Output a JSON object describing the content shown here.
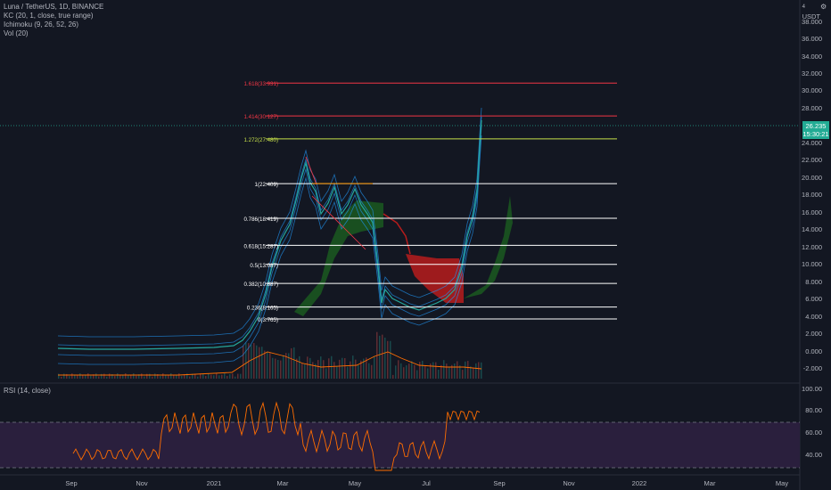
{
  "symbol_line": "Luna / TetherUS, 1D, BINANCE",
  "indicators": [
    "KC (20, 1, close, true range)",
    "Ichimoku (9, 26, 52, 26)",
    "Vol (20)"
  ],
  "rsi_label": "RSI (14, close)",
  "currency": "USDT",
  "currency_prefix": "4",
  "price_tag": {
    "price": "26.235",
    "countdown": "15:30:21"
  },
  "price_axis": [
    "38.000",
    "36.000",
    "34.000",
    "32.000",
    "30.000",
    "28.000",
    "24.000",
    "22.000",
    "20.000",
    "18.000",
    "16.000",
    "14.000",
    "12.000",
    "10.000",
    "8.000",
    "6.000",
    "4.000",
    "2.000",
    "0.000",
    "-2.000"
  ],
  "rsi_axis": [
    "100.00",
    "80.00",
    "60.00",
    "40.00"
  ],
  "time_axis": [
    "Sep",
    "Nov",
    "2021",
    "Mar",
    "May",
    "Jul",
    "Sep",
    "Nov",
    "2022",
    "Mar",
    "May"
  ],
  "fib_levels": [
    {
      "label": "1.618(33.931)",
      "value": 33.931,
      "color": "#f23645"
    },
    {
      "label": "1.414(30.127)",
      "value": 30.127,
      "color": "#f23645"
    },
    {
      "label": "1.272(27.480)",
      "value": 27.48,
      "color": "#c6e04a"
    },
    {
      "label": "1(22.409)",
      "value": 22.409,
      "color": "#ffffff"
    },
    {
      "label": "0.786(18.419)",
      "value": 18.419,
      "color": "#ffffff"
    },
    {
      "label": "0.618(15.287)",
      "value": 15.287,
      "color": "#ffffff"
    },
    {
      "label": "0.5(13.087)",
      "value": 13.087,
      "color": "#ffffff"
    },
    {
      "label": "0.382(10.887)",
      "value": 10.887,
      "color": "#ffffff"
    },
    {
      "label": "0.236(8.165)",
      "value": 8.165,
      "color": "#ffffff"
    },
    {
      "label": "0(3.765)",
      "value": 3.765,
      "color": "#ffffff"
    }
  ],
  "colors": {
    "background": "#131722",
    "up": "#26a69a",
    "down": "#ef5350",
    "kc": "#2196f3",
    "rsi": "#ff6d00",
    "rsi_band": "#4a2d6e",
    "cloud_green": "#1b5e20",
    "cloud_red": "#b71c1c",
    "volume_ma": "#ff6d00"
  },
  "icons": {
    "settings": "gear-icon"
  }
}
